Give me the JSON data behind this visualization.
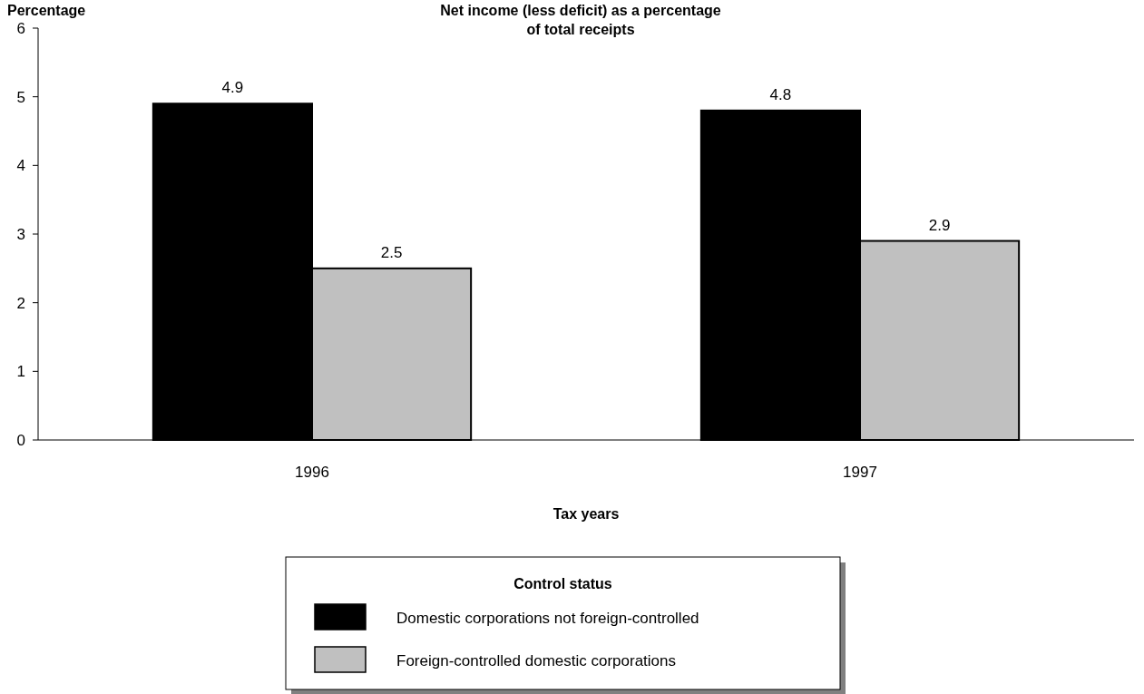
{
  "chart_data": {
    "type": "bar",
    "title": "Net income (less deficit) as a percentage\nof total receipts",
    "ylabel": "Percentage",
    "xlabel": "Tax years",
    "legend_title": "Control status",
    "categories": [
      "1996",
      "1997"
    ],
    "series": [
      {
        "name": "Domestic corporations not foreign-controlled",
        "color": "#000000",
        "values": [
          4.9,
          4.8
        ]
      },
      {
        "name": "Foreign-controlled domestic corporations",
        "color": "#c0c0c0",
        "values": [
          2.5,
          2.9
        ]
      }
    ],
    "ylim": [
      0,
      6
    ],
    "yticks": [
      0,
      1,
      2,
      3,
      4,
      5,
      6
    ],
    "grid": false,
    "legend": "bottom",
    "data_labels": true
  }
}
